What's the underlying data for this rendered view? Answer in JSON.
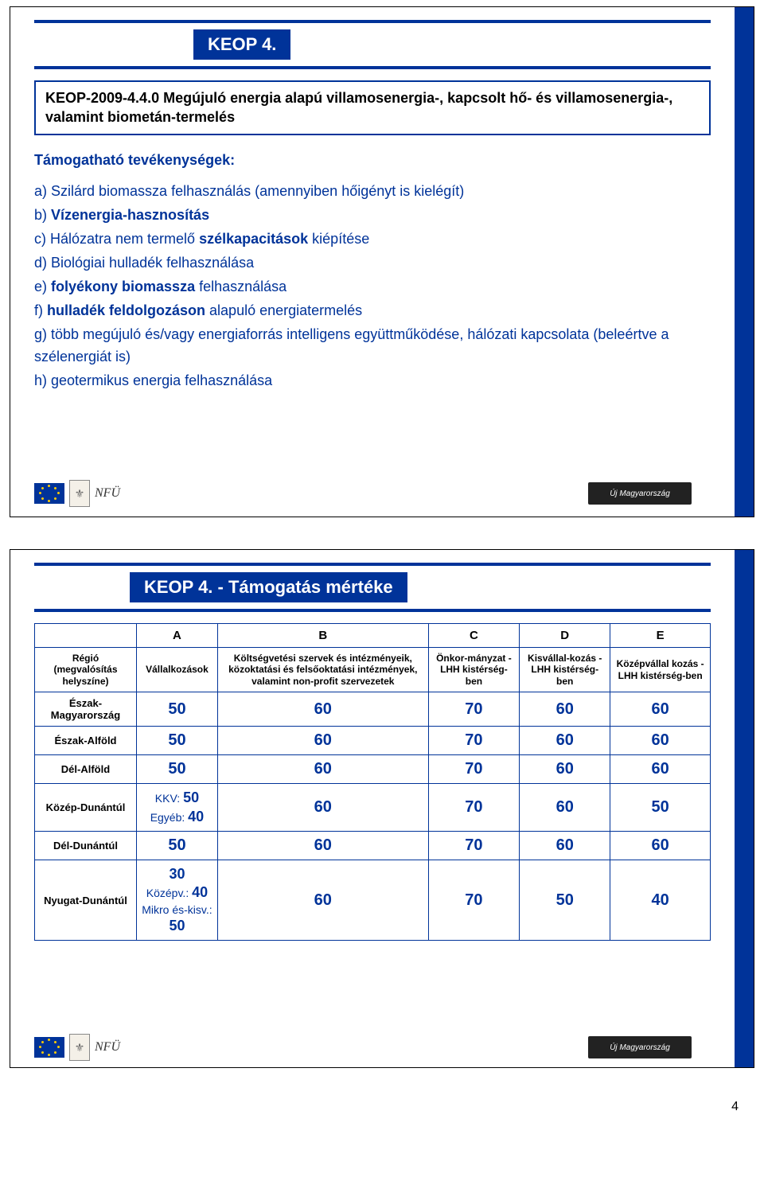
{
  "page_number": "4",
  "colors": {
    "brand_blue": "#003399",
    "text_blue": "#003399",
    "black": "#000000",
    "white": "#ffffff",
    "eu_gold": "#ffcc00"
  },
  "slide1": {
    "title": "KEOP 4.",
    "subtitle": "KEOP-2009-4.4.0 Megújuló energia alapú villamosenergia-, kapcsolt hő- és villamosenergia-, valamint biometán-termelés",
    "section_heading": "Támogatható tevékenységek:",
    "items": [
      {
        "text": "a) Szilárd biomassza felhasználás (amennyiben hőigényt is kielégít)",
        "bold_parts": []
      },
      {
        "text": "b) Vízenergia-hasznosítás",
        "prefix": "b) ",
        "bold": "Vízenergia-hasznosítás"
      },
      {
        "text": "c) Hálózatra nem termelő szélkapacitások kiépítése",
        "prefix": "c) Hálózatra nem termelő ",
        "bold": "szélkapacitások",
        "suffix": " kiépítése"
      },
      {
        "text": "d) Biológiai hulladék felhasználása"
      },
      {
        "text": "e) folyékony biomassza felhasználása",
        "prefix": "e) ",
        "bold": "folyékony biomassza",
        "suffix": " felhasználása"
      },
      {
        "text": "f) hulladék feldolgozáson alapuló energiatermelés",
        "prefix": "f) ",
        "bold": "hulladék feldolgozáson",
        "suffix": " alapuló energiatermelés"
      },
      {
        "text_a": "g) több megújuló és/vagy energiaforrás intelligens együttműködése, hálózati kapcsolata (beleértve a szélenergiát is)"
      },
      {
        "text": "h) geotermikus energia felhasználása"
      }
    ],
    "footer": {
      "nfu": "NFÜ",
      "right": "Új Magyarország"
    }
  },
  "slide2": {
    "title": "KEOP 4. - Támogatás mértéke",
    "col_letters": [
      "A",
      "B",
      "C",
      "D",
      "E"
    ],
    "row_header_label": "Régió (megvalósítás helyszíne)",
    "col_descs": [
      "Vállalkozások",
      "Költségvetési szervek és intézményeik, közoktatási és felsőoktatási intézmények, valamint non-profit szervezetek",
      "Önkor-mányzat - LHH kistérség-ben",
      "Kisvállal-kozás - LHH kistérség-ben",
      "Középvállal kozás - LHH kistérség-ben"
    ],
    "rows": [
      {
        "region": "Észak-Magyarország",
        "a": "50",
        "b": "60",
        "c": "70",
        "d": "60",
        "e": "60"
      },
      {
        "region": "Észak-Alföld",
        "a": "50",
        "b": "60",
        "c": "70",
        "d": "60",
        "e": "60"
      },
      {
        "region": "Dél-Alföld",
        "a": "50",
        "b": "60",
        "c": "70",
        "d": "60",
        "e": "60"
      },
      {
        "region": "Közép-Dunántúl",
        "a_html": "KKV: <b>50</b><br>Egyéb: <b>40</b>",
        "b": "60",
        "c": "70",
        "d": "60",
        "e": "50"
      },
      {
        "region": "Dél-Dunántúl",
        "a": "50",
        "b": "60",
        "c": "70",
        "d": "60",
        "e": "60"
      },
      {
        "region": "Nyugat-Dunántúl",
        "a_html": "<b>30</b><br>Középv.: <b>40</b><br>Mikro és-kisv.: <b>50</b>",
        "b": "60",
        "c": "70",
        "d": "50",
        "e": "40"
      }
    ],
    "footer": {
      "nfu": "NFÜ",
      "right": "Új Magyarország"
    }
  }
}
